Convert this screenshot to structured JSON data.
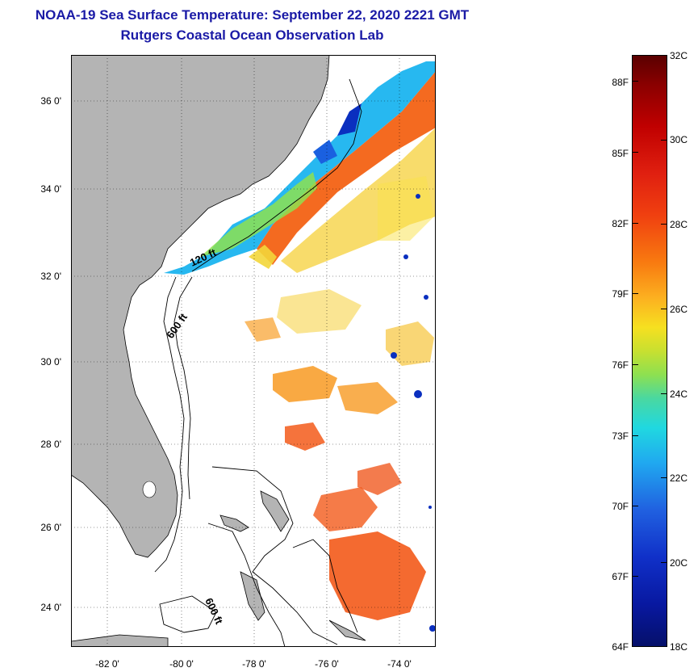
{
  "title": {
    "line1": "NOAA-19 Sea Surface Temperature:  September 22, 2020 2221 GMT",
    "line2": "Rutgers Coastal Ocean Observation Lab"
  },
  "map": {
    "lat_labels": [
      "36 0'",
      "34 0'",
      "32 0'",
      "30 0'",
      "28 0'",
      "26 0'",
      "24 0'"
    ],
    "lon_labels": [
      "-82 0'",
      "-80 0'",
      "-78 0'",
      "-76 0'",
      "-74 0'"
    ],
    "contour_labels": [
      "120 ft",
      "600 ft",
      "600 ft"
    ],
    "colors": {
      "land": "#b4b4b4",
      "water": "#ffffff",
      "warm": "#f35a1a",
      "orange": "#f89a22",
      "yellow": "#f3d63a",
      "cool": "#27b8f0",
      "cold": "#0a2fbf"
    }
  },
  "colorbar": {
    "fahrenheit": [
      "88F",
      "85F",
      "82F",
      "79F",
      "76F",
      "73F",
      "70F",
      "67F",
      "64F"
    ],
    "celsius": [
      "32C",
      "30C",
      "28C",
      "26C",
      "24C",
      "22C",
      "20C",
      "18C"
    ],
    "range_c": [
      18,
      32
    ],
    "range_f": [
      64,
      89.6
    ]
  }
}
